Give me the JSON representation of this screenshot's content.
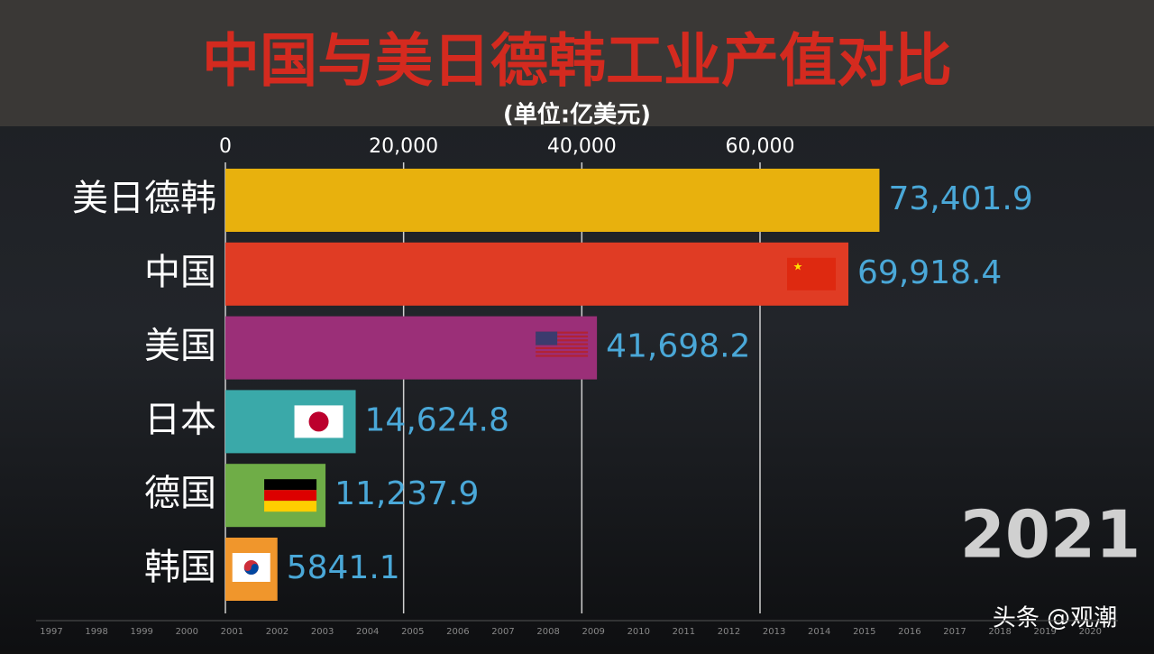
{
  "chart_data": {
    "type": "bar",
    "orientation": "horizontal",
    "title": "中国与美日德韩工业产值对比",
    "subtitle": "(单位:亿美元)",
    "categories": [
      "美日德韩",
      "中国",
      "美国",
      "日本",
      "德国",
      "韩国"
    ],
    "values": [
      73401.9,
      69918.4,
      41698.2,
      14624.8,
      11237.9,
      5841.1
    ],
    "value_labels": [
      "73,401.9",
      "69,918.4",
      "41,698.2",
      "14,624.8",
      "11,237.9",
      "5841.1"
    ],
    "colors": [
      "#e8b10d",
      "#e03c24",
      "#9b2f78",
      "#3aa9a9",
      "#6fad47",
      "#f0962c"
    ],
    "xlim": [
      0,
      80000
    ],
    "xticks": [
      0,
      {
        "value": 20000,
        "label": "20,000"
      },
      {
        "value": 40000,
        "label": "40,000"
      },
      {
        "value": 60000,
        "label": "60,000"
      }
    ],
    "grid": true,
    "current_year": "2021",
    "timeline": [
      1997,
      1998,
      1999,
      2000,
      2001,
      2002,
      2003,
      2004,
      2005,
      2006,
      2007,
      2008,
      2009,
      2010,
      2011,
      2012,
      2013,
      2014,
      2015,
      2016,
      2017,
      2018,
      2019,
      2020
    ],
    "watermark": "头条 @观潮"
  }
}
